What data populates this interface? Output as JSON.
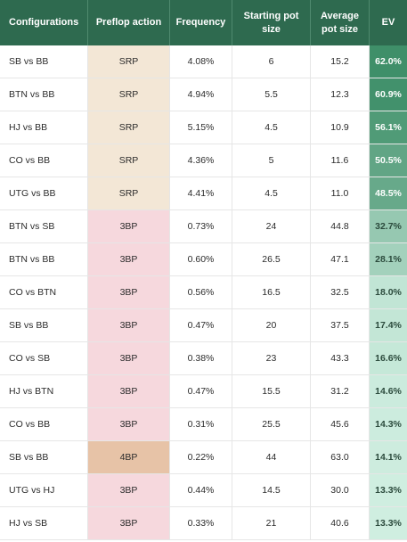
{
  "table": {
    "headers": [
      "Configurations",
      "Preflop action",
      "Frequency",
      "Starting pot\nsize",
      "Average\npot size",
      "EV"
    ],
    "rows": [
      {
        "config": "SB vs BB",
        "action": "SRP",
        "freq": "4.08%",
        "start": "6",
        "avg": "15.2",
        "ev": "62.0%"
      },
      {
        "config": "BTN vs BB",
        "action": "SRP",
        "freq": "4.94%",
        "start": "5.5",
        "avg": "12.3",
        "ev": "60.9%"
      },
      {
        "config": "HJ vs BB",
        "action": "SRP",
        "freq": "5.15%",
        "start": "4.5",
        "avg": "10.9",
        "ev": "56.1%"
      },
      {
        "config": "CO vs BB",
        "action": "SRP",
        "freq": "4.36%",
        "start": "5",
        "avg": "11.6",
        "ev": "50.5%"
      },
      {
        "config": "UTG vs BB",
        "action": "SRP",
        "freq": "4.41%",
        "start": "4.5",
        "avg": "11.0",
        "ev": "48.5%"
      },
      {
        "config": "BTN vs SB",
        "action": "3BP",
        "freq": "0.73%",
        "start": "24",
        "avg": "44.8",
        "ev": "32.7%"
      },
      {
        "config": "BTN vs BB",
        "action": "3BP",
        "freq": "0.60%",
        "start": "26.5",
        "avg": "47.1",
        "ev": "28.1%"
      },
      {
        "config": "CO vs BTN",
        "action": "3BP",
        "freq": "0.56%",
        "start": "16.5",
        "avg": "32.5",
        "ev": "18.0%"
      },
      {
        "config": "SB vs BB",
        "action": "3BP",
        "freq": "0.47%",
        "start": "20",
        "avg": "37.5",
        "ev": "17.4%"
      },
      {
        "config": "CO vs SB",
        "action": "3BP",
        "freq": "0.38%",
        "start": "23",
        "avg": "43.3",
        "ev": "16.6%"
      },
      {
        "config": "HJ vs BTN",
        "action": "3BP",
        "freq": "0.47%",
        "start": "15.5",
        "avg": "31.2",
        "ev": "14.6%"
      },
      {
        "config": "CO vs BB",
        "action": "3BP",
        "freq": "0.31%",
        "start": "25.5",
        "avg": "45.6",
        "ev": "14.3%"
      },
      {
        "config": "SB vs BB",
        "action": "4BP",
        "freq": "0.22%",
        "start": "44",
        "avg": "63.0",
        "ev": "14.1%"
      },
      {
        "config": "UTG vs HJ",
        "action": "3BP",
        "freq": "0.44%",
        "start": "14.5",
        "avg": "30.0",
        "ev": "13.3%"
      },
      {
        "config": "HJ vs SB",
        "action": "3BP",
        "freq": "0.33%",
        "start": "21",
        "avg": "40.6",
        "ev": "13.3%"
      }
    ]
  },
  "colors": {
    "header_bg": "#2e6a4f",
    "header_text": "#ffffff",
    "srp_bg": "#f3e7d6",
    "threebp_bg": "#f6d8dd",
    "fourbp_bg": "#e7c3a7",
    "ev_high": "#3f8f69",
    "ev_low": "#cfeee0"
  }
}
